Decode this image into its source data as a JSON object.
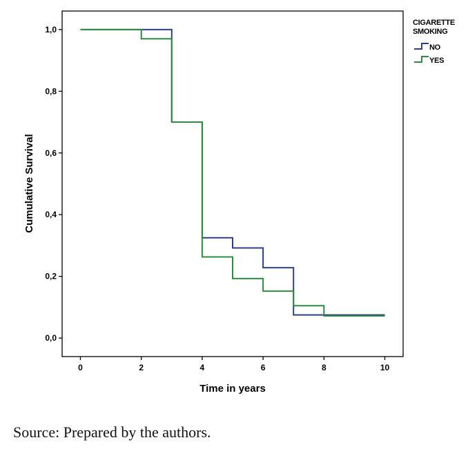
{
  "chart_data": {
    "type": "line",
    "step": true,
    "xlabel": "Time in years",
    "ylabel": "Cumulative Survival",
    "xlim": [
      -0.6,
      10.6
    ],
    "ylim": [
      -0.06,
      1.06
    ],
    "x_ticks": [
      0,
      2,
      4,
      6,
      8,
      10
    ],
    "x_tick_labels": [
      "0",
      "2",
      "4",
      "6",
      "8",
      "10"
    ],
    "y_ticks": [
      0.0,
      0.2,
      0.4,
      0.6,
      0.8,
      1.0
    ],
    "y_tick_labels": [
      "0,0",
      "0,2",
      "0,4",
      "0,6",
      "0,8",
      "1,0"
    ],
    "grid": false,
    "legend": {
      "title_lines": [
        "CIGARETTE",
        "SMOKING"
      ],
      "placement": "top-right, outside plot"
    },
    "series": [
      {
        "name": "NO",
        "color": "#2b3f86",
        "x": [
          0,
          3,
          4,
          5,
          6,
          7,
          10
        ],
        "y": [
          1.0,
          0.7,
          0.325,
          0.292,
          0.228,
          0.075,
          0.075
        ]
      },
      {
        "name": "YES",
        "color": "#2e8b3e",
        "x": [
          0,
          2,
          3,
          4,
          5,
          6,
          7,
          8,
          10
        ],
        "y": [
          1.0,
          0.97,
          0.7,
          0.263,
          0.193,
          0.152,
          0.105,
          0.072,
          0.072
        ]
      }
    ]
  },
  "caption": "Source: Prepared by the authors."
}
